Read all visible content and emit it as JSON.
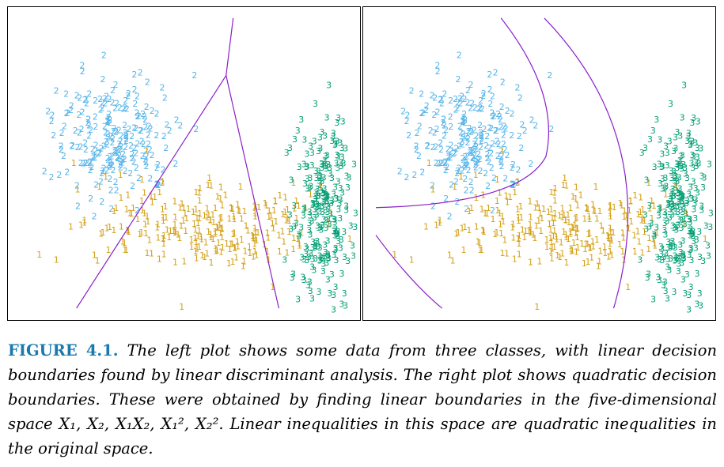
{
  "figure": {
    "label": "FIGURE",
    "number": "4.1.",
    "caption": "The left plot shows some data from three classes, with linear decision boundaries found by linear discriminant analysis. The right plot shows quadratic decision boundaries. These were obtained by finding linear boundaries in the five-dimensional space X₁, X₂, X₁X₂, X₁², X₂². Linear inequalities in this space are quadratic inequalities in the original space."
  },
  "panels": [
    {
      "name": "left",
      "boundary_type": "linear"
    },
    {
      "name": "right",
      "boundary_type": "quadratic"
    }
  ],
  "classes": [
    {
      "label": "1",
      "color": "#d4a017"
    },
    {
      "label": "2",
      "color": "#56b4e9"
    },
    {
      "label": "3",
      "color": "#009e73"
    }
  ],
  "boundary_color": "#8a1fc9"
}
